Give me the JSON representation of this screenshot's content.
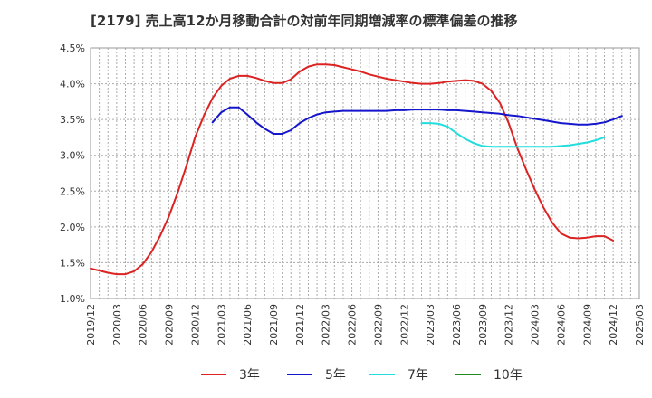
{
  "chart_data": {
    "type": "line",
    "title": "[2179]  売上高12か月移動合計の対前年同期増減率の標準偏差の推移",
    "xlabel": "",
    "ylabel": "",
    "ylim": [
      1.0,
      4.5
    ],
    "y_ticks": [
      "1.0%",
      "1.5%",
      "2.0%",
      "2.5%",
      "3.0%",
      "3.5%",
      "4.0%",
      "4.5%"
    ],
    "y_tick_values": [
      1.0,
      1.5,
      2.0,
      2.5,
      3.0,
      3.5,
      4.0,
      4.5
    ],
    "x_ticks": [
      "2019/12",
      "2020/03",
      "2020/06",
      "2020/09",
      "2020/12",
      "2021/03",
      "2021/06",
      "2021/09",
      "2021/12",
      "2022/03",
      "2022/06",
      "2022/09",
      "2022/12",
      "2023/03",
      "2023/06",
      "2023/09",
      "2023/12",
      "2024/03",
      "2024/06",
      "2024/09",
      "2024/12",
      "2025/03"
    ],
    "x_range_months": [
      0,
      63
    ],
    "grid": true,
    "legend_position": "bottom",
    "series": [
      {
        "name": "3年",
        "color": "#dd2222",
        "start_month": 0,
        "values": [
          1.42,
          1.39,
          1.36,
          1.34,
          1.34,
          1.38,
          1.48,
          1.65,
          1.88,
          2.15,
          2.48,
          2.85,
          3.25,
          3.55,
          3.8,
          3.97,
          4.07,
          4.11,
          4.11,
          4.08,
          4.04,
          4.01,
          4.01,
          4.06,
          4.17,
          4.24,
          4.27,
          4.27,
          4.26,
          4.23,
          4.2,
          4.17,
          4.13,
          4.1,
          4.07,
          4.05,
          4.03,
          4.01,
          4.0,
          4.0,
          4.01,
          4.03,
          4.04,
          4.05,
          4.04,
          4.0,
          3.9,
          3.73,
          3.45,
          3.1,
          2.8,
          2.52,
          2.27,
          2.06,
          1.91,
          1.85,
          1.84,
          1.85,
          1.87,
          1.87,
          1.81
        ]
      },
      {
        "name": "5年",
        "color": "#1515cc",
        "start_month": 14,
        "values": [
          3.46,
          3.6,
          3.67,
          3.67,
          3.57,
          3.46,
          3.37,
          3.3,
          3.3,
          3.35,
          3.45,
          3.52,
          3.57,
          3.6,
          3.61,
          3.62,
          3.62,
          3.62,
          3.62,
          3.62,
          3.62,
          3.63,
          3.63,
          3.64,
          3.64,
          3.64,
          3.64,
          3.63,
          3.63,
          3.62,
          3.61,
          3.6,
          3.59,
          3.58,
          3.56,
          3.55,
          3.53,
          3.51,
          3.49,
          3.47,
          3.45,
          3.44,
          3.43,
          3.43,
          3.44,
          3.46,
          3.5,
          3.55
        ]
      },
      {
        "name": "7年",
        "color": "#22dddd",
        "start_month": 38,
        "values": [
          3.45,
          3.45,
          3.44,
          3.4,
          3.31,
          3.23,
          3.17,
          3.13,
          3.12,
          3.12,
          3.12,
          3.12,
          3.12,
          3.12,
          3.12,
          3.12,
          3.13,
          3.14,
          3.16,
          3.18,
          3.21,
          3.25
        ]
      },
      {
        "name": "10年",
        "color": "#228b22",
        "start_month": 0,
        "values": []
      }
    ]
  }
}
